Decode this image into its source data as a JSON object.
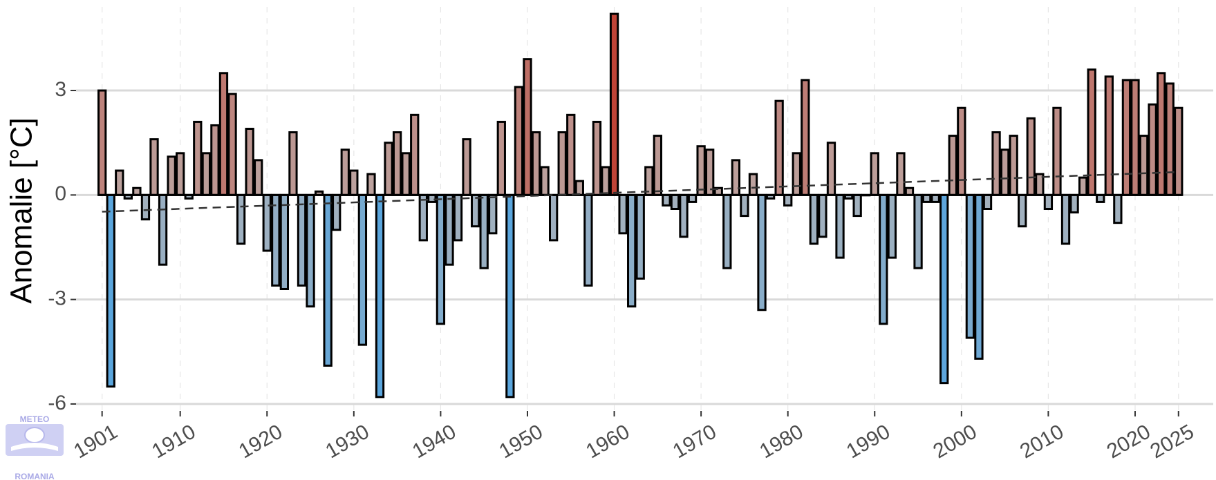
{
  "chart_data": {
    "type": "bar",
    "ylabel": "Anomalie [°C]",
    "ylim": [
      -6.2,
      5.4
    ],
    "yticks": [
      -6,
      -3,
      0,
      3
    ],
    "ytick_labels": [
      "-6",
      "-3",
      "0",
      "3"
    ],
    "xlim": [
      1898,
      2029
    ],
    "xticks": [
      1901,
      1910,
      1920,
      1930,
      1940,
      1950,
      1960,
      1970,
      1980,
      1990,
      2000,
      2010,
      2020,
      2025
    ],
    "xtick_labels": [
      "1901",
      "1910",
      "1920",
      "1930",
      "1940",
      "1950",
      "1960",
      "1970",
      "1980",
      "1990",
      "2000",
      "2010",
      "2020",
      "2025"
    ],
    "grid": true,
    "legend": "none",
    "trend": {
      "style": "dashed",
      "start": [
        1901,
        -0.48
      ],
      "end": [
        2025,
        0.66
      ]
    },
    "colors": {
      "warm_strong": "#c0392b",
      "warm_weak": "#bca39f",
      "cold_strong": "#5aa5dc",
      "cold_weak": "#a3b1be",
      "outline": "#000000",
      "grid": "#d9d9d9",
      "trend": "#333333"
    },
    "x": [
      1901,
      1902,
      1903,
      1904,
      1905,
      1906,
      1907,
      1908,
      1909,
      1910,
      1911,
      1912,
      1913,
      1914,
      1915,
      1916,
      1917,
      1918,
      1919,
      1920,
      1921,
      1922,
      1923,
      1924,
      1925,
      1926,
      1927,
      1928,
      1929,
      1930,
      1931,
      1932,
      1933,
      1934,
      1935,
      1936,
      1937,
      1938,
      1939,
      1940,
      1941,
      1942,
      1943,
      1944,
      1945,
      1946,
      1947,
      1948,
      1949,
      1950,
      1951,
      1952,
      1953,
      1954,
      1955,
      1956,
      1957,
      1958,
      1959,
      1960,
      1961,
      1962,
      1963,
      1964,
      1965,
      1966,
      1967,
      1968,
      1969,
      1970,
      1971,
      1972,
      1973,
      1974,
      1975,
      1976,
      1977,
      1978,
      1979,
      1980,
      1981,
      1982,
      1983,
      1984,
      1985,
      1986,
      1987,
      1988,
      1989,
      1990,
      1991,
      1992,
      1993,
      1994,
      1995,
      1996,
      1997,
      1998,
      1999,
      2000,
      2001,
      2002,
      2003,
      2004,
      2005,
      2006,
      2007,
      2008,
      2009,
      2010,
      2011,
      2012,
      2013,
      2014,
      2015,
      2016,
      2017,
      2018,
      2019,
      2020,
      2021,
      2022,
      2023,
      2024,
      2025
    ],
    "values": [
      3.0,
      -5.5,
      0.7,
      -0.1,
      0.2,
      -0.7,
      1.6,
      -2.0,
      1.1,
      1.2,
      -0.1,
      2.1,
      1.2,
      2.0,
      3.5,
      2.9,
      -1.4,
      1.9,
      1.0,
      -1.6,
      -2.6,
      -2.7,
      1.8,
      -2.6,
      -3.2,
      0.1,
      -4.9,
      -1.0,
      1.3,
      0.7,
      -4.3,
      0.6,
      -5.8,
      1.5,
      1.8,
      1.2,
      2.3,
      -1.3,
      -0.2,
      -3.7,
      -2.0,
      -1.3,
      1.6,
      -0.9,
      -2.1,
      -1.1,
      2.1,
      -5.8,
      3.1,
      3.9,
      1.8,
      0.8,
      -1.3,
      1.8,
      2.3,
      0.4,
      -2.6,
      2.1,
      0.8,
      5.2,
      -1.1,
      -3.2,
      -2.4,
      0.8,
      1.7,
      -0.3,
      -0.4,
      -1.2,
      -0.2,
      1.4,
      1.3,
      0.2,
      -2.1,
      1.0,
      -0.6,
      0.6,
      -3.3,
      -0.1,
      2.7,
      -0.3,
      1.2,
      3.3,
      -1.4,
      -1.2,
      1.5,
      -1.8,
      -0.1,
      -0.6,
      0.0,
      1.2,
      -3.7,
      -1.8,
      1.2,
      0.2,
      -2.1,
      -0.2,
      -0.2,
      -5.4,
      1.7,
      2.5,
      -4.1,
      -4.7,
      -0.4,
      1.8,
      1.3,
      1.7,
      -0.9,
      2.2,
      0.6,
      -0.4,
      2.5,
      -1.4,
      -0.5,
      0.5,
      3.6,
      -0.2,
      3.4,
      -0.8,
      3.3,
      3.3,
      1.7,
      2.6,
      3.5,
      3.2,
      2.5
    ]
  },
  "logo": {
    "top_text": "METEO",
    "bottom_text": "ROMANIA"
  }
}
